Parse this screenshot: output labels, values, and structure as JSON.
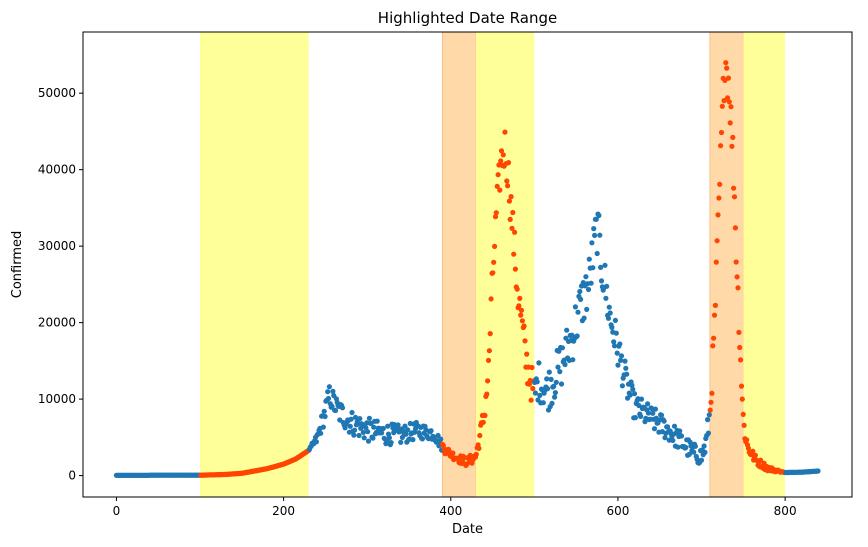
{
  "chart_data": {
    "type": "scatter",
    "title": "Highlighted Date Range",
    "xlabel": "Date",
    "ylabel": "Confirmed",
    "xlim": [
      -40,
      880
    ],
    "ylim": [
      -2800,
      58000
    ],
    "xticks": [
      0,
      200,
      400,
      600,
      800
    ],
    "yticks": [
      0,
      10000,
      20000,
      30000,
      40000,
      50000
    ],
    "grid": false,
    "colors": {
      "normal": "#1f77b4",
      "highlight": "#ff4500",
      "yellow_band": "#ffff99",
      "orange_band": "#ffd9a8"
    },
    "spans": [
      {
        "start": 100,
        "end": 230,
        "color": "yellow"
      },
      {
        "start": 390,
        "end": 430,
        "color": "orange"
      },
      {
        "start": 430,
        "end": 500,
        "color": "yellow"
      },
      {
        "start": 710,
        "end": 750,
        "color": "orange"
      },
      {
        "start": 750,
        "end": 800,
        "color": "yellow"
      }
    ],
    "curve_points": [
      [
        0,
        40
      ],
      [
        100,
        50
      ],
      [
        130,
        150
      ],
      [
        150,
        300
      ],
      [
        165,
        600
      ],
      [
        180,
        900
      ],
      [
        200,
        1500
      ],
      [
        215,
        2200
      ],
      [
        230,
        3300
      ],
      [
        240,
        4800
      ],
      [
        250,
        8500
      ],
      [
        255,
        10500
      ],
      [
        265,
        8500
      ],
      [
        280,
        7000
      ],
      [
        300,
        6000
      ],
      [
        320,
        5500
      ],
      [
        340,
        5300
      ],
      [
        360,
        5900
      ],
      [
        380,
        5500
      ],
      [
        390,
        3800
      ],
      [
        400,
        2800
      ],
      [
        410,
        2200
      ],
      [
        420,
        1800
      ],
      [
        430,
        2500
      ],
      [
        440,
        8000
      ],
      [
        445,
        13500
      ],
      [
        450,
        26000
      ],
      [
        455,
        35000
      ],
      [
        460,
        41000
      ],
      [
        465,
        43000
      ],
      [
        470,
        38000
      ],
      [
        475,
        31000
      ],
      [
        480,
        24000
      ],
      [
        485,
        20000
      ],
      [
        490,
        15000
      ],
      [
        500,
        10500
      ],
      [
        505,
        12500
      ],
      [
        515,
        11000
      ],
      [
        530,
        14000
      ],
      [
        545,
        18000
      ],
      [
        555,
        22000
      ],
      [
        565,
        25000
      ],
      [
        575,
        32500
      ],
      [
        580,
        28000
      ],
      [
        590,
        21000
      ],
      [
        600,
        16500
      ],
      [
        610,
        12000
      ],
      [
        620,
        9000
      ],
      [
        640,
        7500
      ],
      [
        660,
        6000
      ],
      [
        680,
        4000
      ],
      [
        690,
        3000
      ],
      [
        700,
        2500
      ],
      [
        705,
        4000
      ],
      [
        710,
        8000
      ],
      [
        715,
        18000
      ],
      [
        720,
        33000
      ],
      [
        725,
        47000
      ],
      [
        728,
        55000
      ],
      [
        733,
        51000
      ],
      [
        738,
        41000
      ],
      [
        742,
        28000
      ],
      [
        746,
        17000
      ],
      [
        750,
        7000
      ],
      [
        755,
        3800
      ],
      [
        765,
        2000
      ],
      [
        780,
        900
      ],
      [
        800,
        400
      ],
      [
        820,
        450
      ],
      [
        840,
        600
      ]
    ],
    "spread_points": [
      [
        0,
        0
      ],
      [
        230,
        0
      ],
      [
        250,
        1500
      ],
      [
        270,
        1700
      ],
      [
        300,
        1600
      ],
      [
        340,
        1300
      ],
      [
        380,
        900
      ],
      [
        400,
        500
      ],
      [
        430,
        700
      ],
      [
        450,
        2500
      ],
      [
        470,
        3000
      ],
      [
        500,
        2500
      ],
      [
        550,
        3500
      ],
      [
        580,
        3500
      ],
      [
        620,
        1800
      ],
      [
        700,
        1200
      ],
      [
        730,
        3500
      ],
      [
        760,
        700
      ],
      [
        800,
        0
      ],
      [
        840,
        0
      ]
    ],
    "cluster_seed": 12345,
    "sample_step": 1.04
  }
}
